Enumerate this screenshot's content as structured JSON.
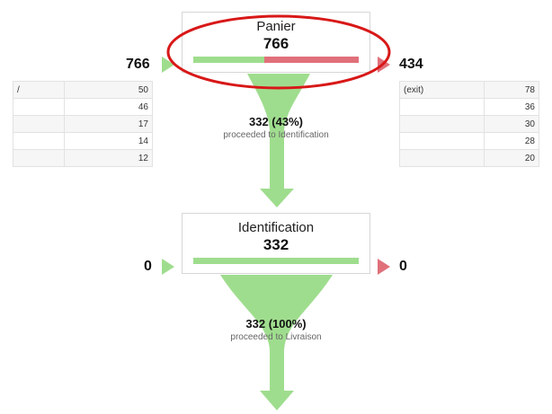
{
  "colors": {
    "green": "#9fdd8e",
    "red": "#e0707a",
    "ellipse": "#d81818"
  },
  "steps": [
    {
      "name": "Panier",
      "value": "766",
      "entrances": "766",
      "exits": "434",
      "proceed_fraction": 0.43,
      "entrance_sources": [
        {
          "label": "/",
          "value": "50"
        },
        {
          "label": "",
          "value": "46"
        },
        {
          "label": "",
          "value": "17"
        },
        {
          "label": "",
          "value": "14"
        },
        {
          "label": "",
          "value": "12"
        }
      ],
      "exit_destinations": [
        {
          "label": "(exit)",
          "value": "78"
        },
        {
          "label": "",
          "value": "36"
        },
        {
          "label": "",
          "value": "30"
        },
        {
          "label": "",
          "value": "28"
        },
        {
          "label": "",
          "value": "20"
        }
      ],
      "flow_count": "332 (43%)",
      "flow_label": "proceeded to Identification"
    },
    {
      "name": "Identification",
      "value": "332",
      "entrances": "0",
      "exits": "0",
      "proceed_fraction": 1.0,
      "flow_count": "332 (100%)",
      "flow_label": "proceeded to Livraison"
    }
  ]
}
